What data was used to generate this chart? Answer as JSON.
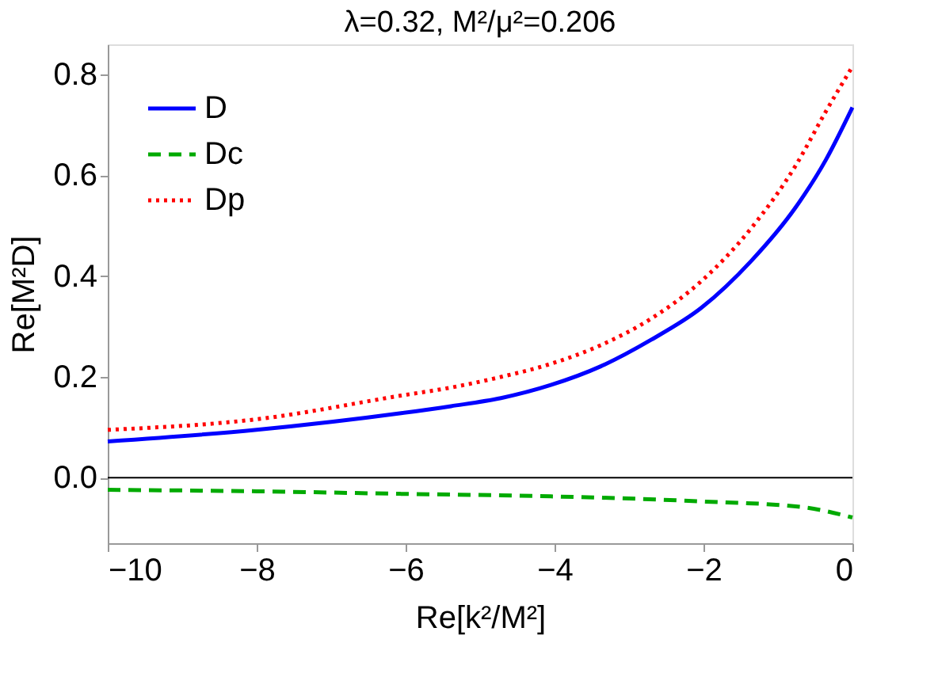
{
  "chart_data": {
    "type": "line",
    "title": "λ=0.32, M²/μ²=0.206",
    "xlabel": "Re[k²/M²]",
    "ylabel": "Re[M²D]",
    "xlim": [
      -10,
      0
    ],
    "ylim": [
      -0.13,
      0.86
    ],
    "xticks": [
      {
        "value": -10,
        "label": "−10"
      },
      {
        "value": -8,
        "label": "−8"
      },
      {
        "value": -6,
        "label": "−6"
      },
      {
        "value": -4,
        "label": "−4"
      },
      {
        "value": -2,
        "label": "−2"
      },
      {
        "value": 0,
        "label": "0"
      }
    ],
    "yticks": [
      {
        "value": 0,
        "label": "0.0"
      },
      {
        "value": 0.2,
        "label": "0.2"
      },
      {
        "value": 0.4,
        "label": "0.4"
      },
      {
        "value": 0.6,
        "label": "0.6"
      },
      {
        "value": 0.8,
        "label": "0.8"
      }
    ],
    "grid": false,
    "legend": "top left",
    "marker": "none",
    "ref_lines": [
      {
        "axis": "y",
        "value": 0,
        "color": "#000000",
        "line_style": "solid"
      }
    ],
    "series": [
      {
        "name": "D",
        "color": "#0000ff",
        "line_style": "solid",
        "x": [
          -10,
          -8,
          -6.06,
          -5.39,
          -4.72,
          -4.05,
          -3.38,
          -2.7,
          -2.03,
          -1.36,
          -0.76,
          -0.36,
          0
        ],
        "values": [
          0.072,
          0.095,
          0.128,
          0.142,
          0.158,
          0.184,
          0.221,
          0.274,
          0.337,
          0.43,
          0.537,
          0.63,
          0.735
        ]
      },
      {
        "name": "Dc",
        "color": "#00aa00",
        "line_style": "dashed",
        "x": [
          -10,
          -8,
          -6.06,
          -4.05,
          -2.03,
          -0.69,
          0
        ],
        "values": [
          -0.024,
          -0.027,
          -0.032,
          -0.037,
          -0.047,
          -0.058,
          -0.079
        ]
      },
      {
        "name": "Dp",
        "color": "#ff0000",
        "line_style": "dotted",
        "x": [
          -10,
          -8,
          -6.06,
          -5.39,
          -4.72,
          -4.05,
          -3.38,
          -2.7,
          -2.03,
          -1.36,
          -0.76,
          -0.36,
          0
        ],
        "values": [
          0.095,
          0.116,
          0.163,
          0.179,
          0.2,
          0.226,
          0.263,
          0.316,
          0.39,
          0.495,
          0.62,
          0.726,
          0.816
        ]
      }
    ]
  }
}
